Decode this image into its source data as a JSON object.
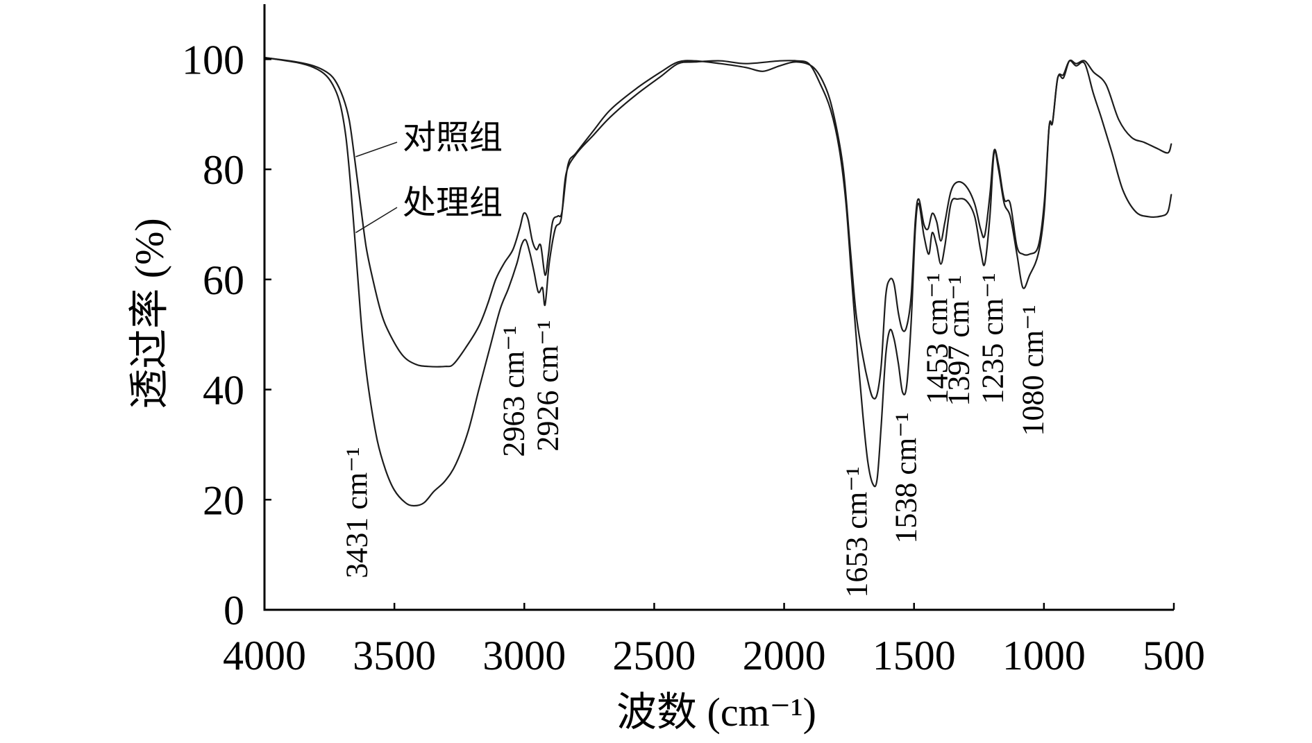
{
  "chart_data": {
    "type": "line",
    "xlabel": "波数 (cm⁻¹)",
    "ylabel": "透过率 (%)",
    "xlim": [
      4000,
      500
    ],
    "ylim": [
      0,
      110
    ],
    "x_ticks": [
      4000,
      3500,
      3000,
      2500,
      2000,
      1500,
      1000,
      500
    ],
    "y_ticks": [
      0,
      20,
      40,
      60,
      80,
      100
    ],
    "grid": false,
    "series": [
      {
        "name": "对照组",
        "x": [
          4000,
          3876,
          3811,
          3762,
          3729,
          3697,
          3674,
          3654,
          3631,
          3609,
          3583,
          3550,
          3517,
          3468,
          3419,
          3370,
          3305,
          3273,
          3224,
          3175,
          3142,
          3110,
          3077,
          3044,
          3018,
          3002,
          2986,
          2969,
          2953,
          2937,
          2920,
          2907,
          2891,
          2871,
          2855,
          2832,
          2800,
          2734,
          2669,
          2571,
          2474,
          2408,
          2343,
          2245,
          2147,
          2082,
          2017,
          1952,
          1887,
          1838,
          1805,
          1772,
          1746,
          1723,
          1697,
          1674,
          1658,
          1642,
          1626,
          1609,
          1593,
          1577,
          1560,
          1544,
          1528,
          1511,
          1495,
          1482,
          1462,
          1446,
          1430,
          1413,
          1397,
          1381,
          1358,
          1332,
          1299,
          1267,
          1244,
          1228,
          1208,
          1192,
          1175,
          1153,
          1130,
          1104,
          1081,
          1055,
          1022,
          999,
          980,
          967,
          947,
          925,
          902,
          876,
          843,
          810,
          761,
          712,
          663,
          614,
          565,
          523,
          510
        ],
        "y": [
          100.3,
          99.5,
          98.8,
          97.7,
          96.2,
          93.0,
          89.0,
          82.3,
          73.8,
          66.0,
          60.0,
          53.8,
          50.0,
          46.2,
          44.6,
          44.2,
          44.2,
          44.6,
          47.7,
          51.5,
          55.4,
          60.0,
          63.0,
          65.4,
          69.2,
          72.0,
          71.0,
          67.0,
          65.4,
          66.2,
          60.8,
          64.6,
          70.5,
          71.5,
          72.3,
          80.8,
          83.0,
          87.0,
          90.8,
          94.6,
          97.7,
          99.5,
          99.7,
          99.2,
          98.5,
          97.8,
          98.8,
          99.5,
          98.5,
          94.6,
          89.0,
          80.0,
          66.0,
          53.8,
          46.0,
          40.8,
          38.5,
          39.2,
          44.6,
          57.0,
          60.0,
          59.2,
          53.8,
          50.8,
          51.5,
          57.0,
          70.8,
          74.6,
          70.0,
          69.2,
          72.0,
          70.5,
          67.0,
          70.5,
          76.0,
          77.7,
          76.9,
          73.8,
          69.2,
          68.0,
          75.4,
          83.4,
          80.8,
          74.6,
          73.8,
          66.0,
          64.6,
          64.6,
          66.0,
          73.8,
          87.7,
          88.5,
          96.6,
          96.6,
          99.7,
          99.2,
          99.7,
          97.7,
          95.4,
          89.0,
          85.8,
          84.9,
          83.8,
          83.0,
          84.6
        ]
      },
      {
        "name": "处理组",
        "x": [
          4000,
          3876,
          3811,
          3762,
          3729,
          3707,
          3687,
          3671,
          3654,
          3638,
          3622,
          3599,
          3566,
          3534,
          3501,
          3459,
          3426,
          3387,
          3348,
          3305,
          3263,
          3217,
          3175,
          3132,
          3093,
          3060,
          3028,
          3011,
          2995,
          2979,
          2963,
          2946,
          2930,
          2920,
          2904,
          2881,
          2858,
          2839,
          2800,
          2734,
          2669,
          2571,
          2474,
          2408,
          2343,
          2245,
          2147,
          2017,
          1952,
          1903,
          1860,
          1821,
          1788,
          1762,
          1740,
          1717,
          1697,
          1678,
          1658,
          1642,
          1626,
          1609,
          1593,
          1577,
          1560,
          1544,
          1528,
          1511,
          1495,
          1482,
          1462,
          1443,
          1430,
          1413,
          1397,
          1381,
          1358,
          1332,
          1299,
          1267,
          1244,
          1228,
          1208,
          1192,
          1175,
          1153,
          1130,
          1104,
          1081,
          1055,
          1022,
          999,
          980,
          967,
          947,
          925,
          902,
          876,
          843,
          810,
          778,
          738,
          696,
          647,
          598,
          549,
          523,
          510
        ],
        "y": [
          100.3,
          99.4,
          98.5,
          97.0,
          94.6,
          91.5,
          86.0,
          78.5,
          68.5,
          58.5,
          49.2,
          40.0,
          30.8,
          25.4,
          21.8,
          19.5,
          18.9,
          19.4,
          21.5,
          23.4,
          26.5,
          32.3,
          40.0,
          47.7,
          54.6,
          58.5,
          63.0,
          66.2,
          67.2,
          64.9,
          61.5,
          57.7,
          58.5,
          55.4,
          63.0,
          69.2,
          71.0,
          79.2,
          82.8,
          86.2,
          89.5,
          93.5,
          96.9,
          99.2,
          99.5,
          99.7,
          99.2,
          99.7,
          99.7,
          99.1,
          95.4,
          90.8,
          83.8,
          73.8,
          60.0,
          46.2,
          35.4,
          26.9,
          22.8,
          23.8,
          33.8,
          46.2,
          50.8,
          49.2,
          44.6,
          39.5,
          40.8,
          52.3,
          69.2,
          73.8,
          68.0,
          64.6,
          68.5,
          66.2,
          62.8,
          66.2,
          73.8,
          74.6,
          74.3,
          71.5,
          65.4,
          62.8,
          71.5,
          83.0,
          80.0,
          73.8,
          71.5,
          64.6,
          58.5,
          60.8,
          64.6,
          72.3,
          87.7,
          88.5,
          96.6,
          97.2,
          99.7,
          98.8,
          99.2,
          93.8,
          89.2,
          83.0,
          76.2,
          72.3,
          71.4,
          71.5,
          72.3,
          75.4
        ]
      }
    ],
    "annotations": [
      {
        "text": "3431 cm⁻¹",
        "x": 3431
      },
      {
        "text": "2963 cm⁻¹",
        "x": 2963
      },
      {
        "text": "2926 cm⁻¹",
        "x": 2926
      },
      {
        "text": "1653 cm⁻¹",
        "x": 1653
      },
      {
        "text": "1538 cm⁻¹",
        "x": 1538
      },
      {
        "text": "1453 cm⁻¹",
        "x": 1453
      },
      {
        "text": "1397 cm⁻¹",
        "x": 1397
      },
      {
        "text": "1235 cm⁻¹",
        "x": 1235
      },
      {
        "text": "1080 cm⁻¹",
        "x": 1080
      }
    ]
  },
  "colors": {
    "line": "#1c1c1c",
    "axis": "#000000",
    "background": "#ffffff"
  }
}
